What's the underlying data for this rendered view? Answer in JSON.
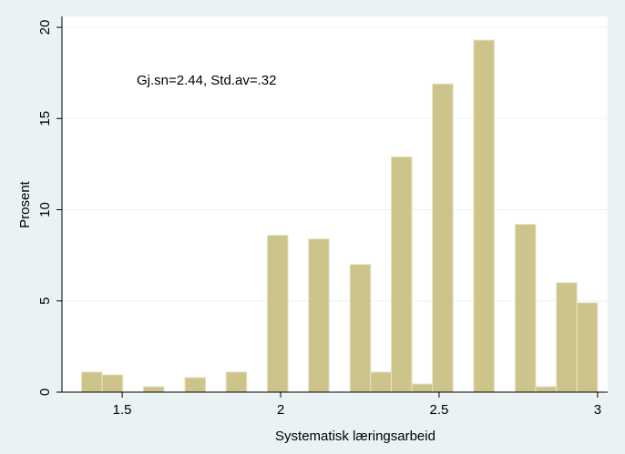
{
  "chart_data": {
    "type": "histogram",
    "x_label": "Systematisk læringsarbeid",
    "y_label": "Prosent",
    "annotation": "Gj.sn=2.44, Std.av=.32",
    "bins": [
      1.372,
      1.437,
      1.502,
      1.567,
      1.632,
      1.698,
      1.763,
      1.828,
      1.893,
      1.958,
      2.023,
      2.088,
      2.153,
      2.219,
      2.284,
      2.349,
      2.414,
      2.479,
      2.544,
      2.609,
      2.674,
      2.74,
      2.805,
      2.87,
      2.935,
      3.0
    ],
    "values": [
      1.1,
      0.95,
      0,
      0.3,
      0,
      0.8,
      0,
      1.1,
      0,
      8.6,
      0,
      8.4,
      0,
      7.0,
      1.1,
      12.9,
      0.45,
      16.9,
      0,
      19.3,
      0,
      9.2,
      0.3,
      6.0,
      4.9
    ],
    "color": "#cdc48c",
    "xlim": [
      1.31,
      3.032
    ],
    "ylim": [
      0,
      20.6
    ],
    "xticks": [
      1.5,
      2,
      2.5,
      3
    ],
    "yticks": [
      0,
      5,
      10,
      15,
      20
    ],
    "grid": true
  }
}
